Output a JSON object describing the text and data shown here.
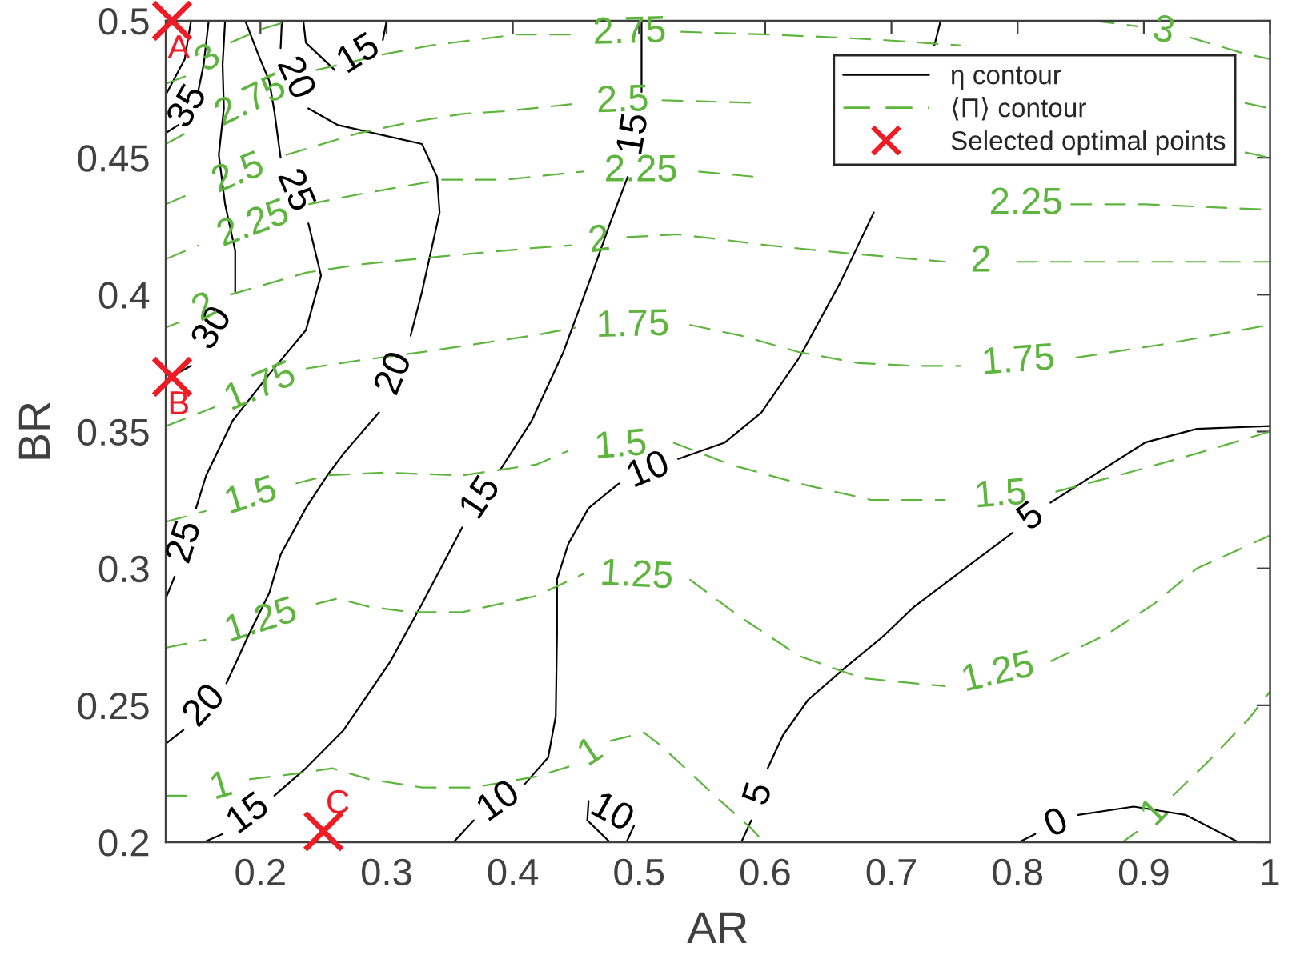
{
  "chart_data": {
    "type": "line",
    "xlabel": "AR",
    "ylabel": "BR",
    "xlim": [
      0.125,
      1
    ],
    "ylim": [
      0.2,
      0.5
    ],
    "xticks": [
      0.2,
      0.3,
      0.4,
      0.5,
      0.6,
      0.7,
      0.8,
      0.9,
      1
    ],
    "yticks": [
      0.2,
      0.25,
      0.3,
      0.35,
      0.4,
      0.45,
      0.5
    ],
    "legend": "top right",
    "series": [
      {
        "name": "η contour",
        "color": "#000000",
        "line_style": "solid",
        "x": [
          0.145,
          0.14,
          0.125
        ],
        "values": [
          0.5,
          0.486,
          0.473
        ]
      },
      {
        "color": "#000000",
        "line_style": "solid",
        "x": [
          0.159,
          0.155,
          0.151,
          null,
          0.135,
          0.125
        ],
        "values": [
          0.5,
          0.484,
          0.475,
          null,
          0.462,
          0.459
        ]
      },
      {
        "color": "#000000",
        "line_style": "solid",
        "x": [
          0.172,
          0.17,
          0.171,
          0.167,
          0.172,
          0.18,
          0.18,
          null,
          0.145,
          0.125
        ],
        "values": [
          0.5,
          0.484,
          0.468,
          0.451,
          0.433,
          0.416,
          0.401,
          null,
          0.374,
          0.369
        ]
      },
      {
        "color": "#000000",
        "line_style": "solid",
        "x": [
          0.188,
          0.198,
          0.207,
          0.211,
          0.216,
          null,
          0.238,
          0.248,
          0.236,
          0.207,
          0.178,
          0.157,
          0.149,
          null,
          0.132,
          0.125
        ],
        "values": [
          0.5,
          0.488,
          0.478,
          0.467,
          0.45,
          null,
          0.426,
          0.407,
          0.387,
          0.371,
          0.354,
          0.334,
          0.322,
          null,
          0.297,
          0.289
        ]
      },
      {
        "color": "#000000",
        "line_style": "solid",
        "x": [
          0.217,
          0.216,
          null,
          0.238,
          0.261,
          0.328,
          0.34,
          0.342,
          0.328,
          0.319,
          null,
          0.294,
          0.266,
          0.253,
          0.236,
          0.216,
          0.207,
          0.191,
          0.173,
          null,
          0.139,
          0.125
        ],
        "values": [
          0.5,
          0.49,
          null,
          0.468,
          0.462,
          0.455,
          0.443,
          0.43,
          0.401,
          0.385,
          null,
          0.357,
          0.342,
          0.334,
          0.322,
          0.305,
          0.291,
          0.276,
          0.258,
          null,
          0.241,
          0.236
        ]
      },
      {
        "color": "#000000",
        "line_style": "solid",
        "x": [
          0.234,
          0.236,
          0.259,
          null,
          0.297,
          0.3
        ],
        "values": [
          0.5,
          0.492,
          0.482,
          null,
          0.493,
          0.5
        ]
      },
      {
        "color": "#000000",
        "line_style": "solid",
        "x": [
          0.502,
          0.502,
          null,
          0.491,
          0.477,
          0.46,
          0.44,
          0.415,
          0.39,
          null,
          0.36,
          0.328,
          0.303,
          0.266,
          0.236,
          0.211,
          null,
          0.17,
          0.155
        ],
        "values": [
          0.5,
          0.474,
          null,
          0.443,
          0.426,
          0.404,
          0.379,
          0.354,
          0.336,
          null,
          0.315,
          0.287,
          0.266,
          0.241,
          0.227,
          0.217,
          null,
          0.203,
          0.2
        ]
      },
      {
        "color": "#000000",
        "line_style": "solid",
        "x": [
          0.353,
          0.369,
          null,
          0.409,
          0.428,
          0.434,
          0.435,
          0.435,
          0.444,
          0.46,
          0.484,
          null,
          0.531,
          0.568,
          0.597,
          0.627,
          0.659,
          0.686,
          null,
          0.734,
          0.739
        ],
        "values": [
          0.2,
          0.208,
          null,
          0.221,
          0.231,
          0.246,
          0.276,
          0.296,
          0.309,
          0.322,
          0.331,
          null,
          0.34,
          0.346,
          0.357,
          0.377,
          0.404,
          0.43,
          null,
          0.491,
          0.5
        ]
      },
      {
        "color": "#000000",
        "line_style": "solid",
        "x": [
          0.477,
          0.459,
          0.46,
          null,
          0.496,
          0.49
        ],
        "values": [
          0.2,
          0.208,
          0.215,
          null,
          0.206,
          0.2
        ]
      },
      {
        "color": "#000000",
        "line_style": "solid",
        "x": [
          0.581,
          0.589,
          null,
          0.602,
          0.614,
          0.634,
          0.664,
          0.693,
          0.718,
          0.767,
          0.796,
          null,
          0.826,
          0.867,
          0.901,
          0.942,
          1.0
        ],
        "values": [
          0.2,
          0.208,
          null,
          0.227,
          0.239,
          0.252,
          0.264,
          0.275,
          0.286,
          0.303,
          0.313,
          null,
          0.324,
          0.336,
          0.346,
          0.351,
          0.352
        ]
      },
      {
        "color": "#000000",
        "line_style": "solid",
        "x": [
          0.801,
          0.814,
          null,
          0.848,
          0.892,
          0.933,
          0.975
        ],
        "values": [
          0.2,
          0.203,
          null,
          0.21,
          0.213,
          0.21,
          0.2
        ]
      },
      {
        "name": "⟨Π⟩ contour",
        "color": "#5db53d",
        "line_style": "dashed",
        "x": [
          0.125,
          0.142,
          null,
          0.176,
          0.201,
          0.223
        ],
        "values": [
          0.477,
          0.48,
          null,
          0.492,
          0.497,
          0.5
        ]
      },
      {
        "color": "#5db53d",
        "line_style": "dashed",
        "x": [
          0.86,
          0.895,
          null,
          0.936,
          0.98,
          1.0
        ],
        "values": [
          0.5,
          0.498,
          null,
          0.494,
          0.488,
          0.486
        ]
      },
      {
        "color": "#5db53d",
        "line_style": "dashed",
        "x": [
          0.125,
          0.141,
          null,
          0.244,
          0.263,
          0.3,
          0.335,
          0.403,
          0.452,
          null,
          0.533,
          0.602,
          0.652,
          0.693,
          0.755,
          null,
          0.98,
          1.0
        ],
        "values": [
          0.455,
          0.459,
          null,
          0.482,
          0.484,
          0.488,
          0.491,
          0.495,
          0.495,
          null,
          0.496,
          0.495,
          0.494,
          0.493,
          0.491,
          null,
          0.47,
          0.468
        ]
      },
      {
        "color": "#5db53d",
        "line_style": "dashed",
        "x": [
          0.125,
          0.145,
          null,
          0.22,
          0.278,
          0.319,
          0.36,
          0.394,
          0.456,
          null,
          0.518,
          0.593,
          null,
          0.98,
          1.0
        ],
        "values": [
          0.433,
          0.437,
          null,
          0.451,
          0.459,
          0.463,
          0.466,
          0.467,
          0.47,
          null,
          0.471,
          0.47,
          null,
          0.452,
          0.45
        ]
      },
      {
        "color": "#5db53d",
        "line_style": "dashed",
        "x": [
          0.125,
          0.151,
          null,
          0.238,
          0.282,
          0.344,
          0.394,
          0.456,
          null,
          0.547,
          0.593,
          null,
          0.842,
          0.901,
          1.0
        ],
        "values": [
          0.413,
          0.418,
          null,
          0.433,
          0.437,
          0.442,
          0.442,
          0.445,
          null,
          0.445,
          0.443,
          null,
          0.433,
          0.433,
          0.431
        ]
      },
      {
        "color": "#5db53d",
        "line_style": "dashed",
        "x": [
          0.125,
          0.136,
          null,
          0.176,
          0.236,
          0.278,
          0.344,
          0.415,
          0.447,
          null,
          0.49,
          0.531,
          0.568,
          0.602,
          0.668,
          0.743,
          null,
          0.799,
          0.892,
          1.0
        ],
        "values": [
          0.388,
          0.39,
          null,
          0.4,
          0.408,
          0.411,
          0.414,
          0.417,
          0.418,
          null,
          0.421,
          0.422,
          0.42,
          0.418,
          0.415,
          0.412,
          null,
          0.412,
          0.412,
          0.412
        ]
      },
      {
        "color": "#5db53d",
        "line_style": "dashed",
        "x": [
          0.125,
          0.164,
          null,
          0.236,
          0.278,
          0.328,
          0.415,
          0.45,
          null,
          0.54,
          0.581,
          0.627,
          0.674,
          0.718,
          0.755,
          null,
          0.846,
          0.917,
          1.0
        ],
        "values": [
          0.352,
          0.359,
          null,
          0.373,
          0.376,
          0.379,
          0.385,
          0.388,
          null,
          0.389,
          0.385,
          0.379,
          0.375,
          0.374,
          0.374,
          null,
          0.377,
          0.382,
          0.389
        ]
      },
      {
        "color": "#5db53d",
        "line_style": "dashed",
        "x": [
          0.125,
          0.157,
          null,
          0.228,
          0.253,
          0.298,
          0.36,
          0.419,
          0.444,
          null,
          0.527,
          0.572,
          0.627,
          0.684,
          0.743,
          null,
          0.83,
          0.88,
          0.942,
          1.0
        ],
        "values": [
          0.317,
          0.321,
          null,
          0.331,
          0.334,
          0.335,
          0.334,
          0.338,
          0.343,
          null,
          0.346,
          0.338,
          0.331,
          0.325,
          0.325,
          null,
          0.328,
          0.334,
          0.342,
          0.35
        ]
      },
      {
        "color": "#5db53d",
        "line_style": "dashed",
        "x": [
          0.125,
          0.157,
          null,
          0.244,
          0.261,
          0.286,
          0.319,
          0.36,
          0.419,
          0.456,
          null,
          0.54,
          0.581,
          0.627,
          0.676,
          0.718,
          0.743,
          null,
          0.826,
          0.871,
          0.908,
          0.942,
          1.0
        ],
        "values": [
          0.271,
          0.274,
          null,
          0.287,
          0.289,
          0.286,
          0.284,
          0.284,
          0.29,
          0.298,
          null,
          0.296,
          0.282,
          0.268,
          0.26,
          0.258,
          0.257,
          null,
          0.266,
          0.276,
          0.287,
          0.3,
          0.312
        ]
      },
      {
        "color": "#5db53d",
        "line_style": "dashed",
        "x": [
          0.125,
          0.147,
          null,
          0.191,
          0.228,
          0.257,
          0.286,
          0.328,
          0.369,
          0.419,
          0.447,
          null,
          0.477,
          0.504,
          0.518,
          0.56,
          0.589,
          0.599
        ],
        "values": [
          0.217,
          0.217,
          null,
          0.223,
          0.225,
          0.227,
          0.223,
          0.22,
          0.22,
          0.224,
          0.228,
          null,
          0.237,
          0.24,
          0.235,
          0.217,
          0.205,
          0.2
        ]
      },
      {
        "color": "#5db53d",
        "line_style": "dashed",
        "x": [
          0.883,
          0.895,
          null,
          0.923,
          0.95,
          0.983,
          1.0
        ],
        "values": [
          0.2,
          0.204,
          null,
          0.217,
          0.229,
          0.245,
          0.255
        ]
      },
      {
        "name": "Selected optimal points",
        "type": "scatter",
        "color": "#ee1c25",
        "marker": "cross",
        "x": [
          0.13,
          0.13,
          0.25
        ],
        "values": [
          0.5,
          0.37,
          0.204
        ]
      }
    ],
    "annotations": [
      {
        "text": "A",
        "x": 0.13,
        "y": 0.5
      },
      {
        "text": "B",
        "x": 0.13,
        "y": 0.37
      },
      {
        "text": "C",
        "x": 0.25,
        "y": 0.204
      },
      {
        "text": "35",
        "x": 0.151,
        "y": 0.475
      },
      {
        "text": "30",
        "x": 0.18,
        "y": 0.401
      },
      {
        "text": "25",
        "x": 0.216,
        "y": 0.45
      },
      {
        "text": "25",
        "x": 0.149,
        "y": 0.322
      },
      {
        "text": "20",
        "x": 0.216,
        "y": 0.49
      },
      {
        "text": "20",
        "x": 0.319,
        "y": 0.385
      },
      {
        "text": "20",
        "x": 0.173,
        "y": 0.258
      },
      {
        "text": "15",
        "x": 0.259,
        "y": 0.482
      },
      {
        "text": "15",
        "x": 0.502,
        "y": 0.474
      },
      {
        "text": "15",
        "x": 0.39,
        "y": 0.336
      },
      {
        "text": "15",
        "x": 0.211,
        "y": 0.217
      },
      {
        "text": "10",
        "x": 0.369,
        "y": 0.208
      },
      {
        "text": "10",
        "x": 0.484,
        "y": 0.331
      },
      {
        "text": "10",
        "x": 0.46,
        "y": 0.215
      },
      {
        "text": "5",
        "x": 0.589,
        "y": 0.208
      },
      {
        "text": "5",
        "x": 0.796,
        "y": 0.313
      },
      {
        "text": "0",
        "x": 0.814,
        "y": 0.203
      },
      {
        "text": "3",
        "x": 0.142,
        "y": 0.48
      },
      {
        "text": "3",
        "x": 0.895,
        "y": 0.498
      },
      {
        "text": "2.75",
        "x": 0.141,
        "y": 0.459
      },
      {
        "text": "2.75",
        "x": 0.452,
        "y": 0.495
      },
      {
        "text": "2.5",
        "x": 0.145,
        "y": 0.437
      },
      {
        "text": "2.5",
        "x": 0.456,
        "y": 0.47
      },
      {
        "text": "2.25",
        "x": 0.151,
        "y": 0.418
      },
      {
        "text": "2.25",
        "x": 0.456,
        "y": 0.445
      },
      {
        "text": "2.25",
        "x": 0.842,
        "y": 0.433
      },
      {
        "text": "2",
        "x": 0.136,
        "y": 0.39
      },
      {
        "text": "2",
        "x": 0.447,
        "y": 0.418
      },
      {
        "text": "2",
        "x": 0.743,
        "y": 0.412
      },
      {
        "text": "1.75",
        "x": 0.164,
        "y": 0.359
      },
      {
        "text": "1.75",
        "x": 0.45,
        "y": 0.388
      },
      {
        "text": "1.75",
        "x": 0.755,
        "y": 0.374
      },
      {
        "text": "1.5",
        "x": 0.157,
        "y": 0.321
      },
      {
        "text": "1.5",
        "x": 0.444,
        "y": 0.343
      },
      {
        "text": "1.5",
        "x": 0.743,
        "y": 0.325
      },
      {
        "text": "1.25",
        "x": 0.157,
        "y": 0.274
      },
      {
        "text": "1.25",
        "x": 0.456,
        "y": 0.298
      },
      {
        "text": "1.25",
        "x": 0.743,
        "y": 0.257
      },
      {
        "text": "1",
        "x": 0.147,
        "y": 0.217
      },
      {
        "text": "1",
        "x": 0.447,
        "y": 0.228
      },
      {
        "text": "1",
        "x": 0.895,
        "y": 0.204
      }
    ]
  }
}
